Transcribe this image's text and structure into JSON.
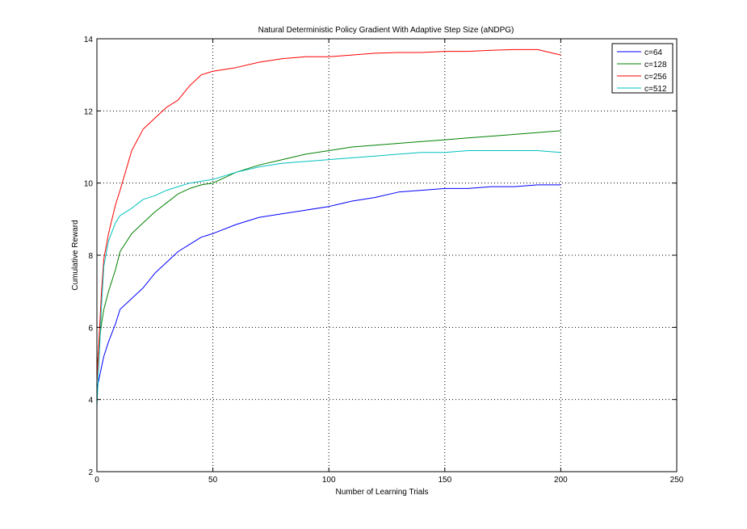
{
  "chart_data": {
    "type": "line",
    "title": "Natural Deterministic Policy Gradient With Adaptive Step Size (aNDPG)",
    "xlabel": "Number of Learning Trials",
    "ylabel": "Cumulative Reward",
    "xlim": [
      0,
      250
    ],
    "ylim": [
      2,
      14
    ],
    "xticks": [
      "0",
      "50",
      "100",
      "150",
      "200",
      "250"
    ],
    "yticks": [
      "2",
      "4",
      "6",
      "8",
      "10",
      "12",
      "14"
    ],
    "grid": true,
    "legend_position": "top-right",
    "x": [
      0,
      1,
      2,
      3,
      5,
      8,
      10,
      15,
      20,
      25,
      30,
      35,
      40,
      45,
      50,
      60,
      70,
      80,
      90,
      100,
      110,
      120,
      130,
      140,
      150,
      160,
      170,
      180,
      190,
      200
    ],
    "series": [
      {
        "name": "c=64",
        "color": "#0000ff",
        "values": [
          4.3,
          4.6,
          4.9,
          5.2,
          5.6,
          6.1,
          6.5,
          6.8,
          7.1,
          7.5,
          7.8,
          8.1,
          8.3,
          8.5,
          8.6,
          8.85,
          9.05,
          9.15,
          9.25,
          9.35,
          9.5,
          9.6,
          9.75,
          9.8,
          9.85,
          9.85,
          9.9,
          9.9,
          9.95,
          9.95
        ]
      },
      {
        "name": "c=128",
        "color": "#008000",
        "values": [
          4.8,
          5.6,
          6.1,
          6.5,
          7.0,
          7.6,
          8.1,
          8.6,
          8.9,
          9.2,
          9.45,
          9.7,
          9.85,
          9.95,
          10.0,
          10.3,
          10.5,
          10.65,
          10.8,
          10.9,
          11.0,
          11.05,
          11.1,
          11.15,
          11.2,
          11.25,
          11.3,
          11.35,
          11.4,
          11.45
        ]
      },
      {
        "name": "c=256",
        "color": "#ff0000",
        "values": [
          4.5,
          5.8,
          7.0,
          7.9,
          8.6,
          9.4,
          9.8,
          10.9,
          11.5,
          11.8,
          12.1,
          12.3,
          12.7,
          13.0,
          13.1,
          13.2,
          13.35,
          13.45,
          13.5,
          13.5,
          13.55,
          13.6,
          13.62,
          13.62,
          13.65,
          13.65,
          13.68,
          13.7,
          13.7,
          13.55
        ]
      },
      {
        "name": "c=512",
        "color": "#00bfbf",
        "values": [
          3.8,
          5.2,
          6.6,
          7.7,
          8.4,
          8.9,
          9.1,
          9.3,
          9.55,
          9.65,
          9.8,
          9.9,
          10.0,
          10.05,
          10.1,
          10.3,
          10.45,
          10.55,
          10.6,
          10.65,
          10.7,
          10.75,
          10.8,
          10.85,
          10.85,
          10.9,
          10.9,
          10.9,
          10.9,
          10.85
        ]
      }
    ]
  }
}
